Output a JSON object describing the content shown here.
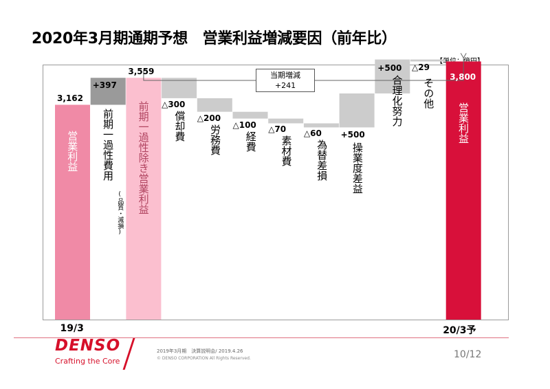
{
  "title": "2020年3月期通期予想　営業利益増減要因（前年比）",
  "unit": "【単位：億円】",
  "callout": {
    "label": "当期増減",
    "value": "+241"
  },
  "chart_data": {
    "type": "waterfall",
    "title": "2020年3月期通期予想　営業利益増減要因（前年比）",
    "ylim": [
      0,
      4300
    ],
    "steps": [
      {
        "name": "営業利益",
        "value_label": "3,162",
        "start": 0,
        "end": 3162,
        "kind": "start"
      },
      {
        "name": "前期一過性費用",
        "note": "(品質・減損)",
        "value_label": "+397",
        "start": 3162,
        "end": 3559,
        "kind": "increase"
      },
      {
        "name": "前期一過性除き営業利益",
        "value_label": "3,559",
        "start": 0,
        "end": 3559,
        "kind": "subtotal"
      },
      {
        "name": "償却費",
        "value_label": "△300",
        "start": 3559,
        "end": 3259,
        "kind": "decrease"
      },
      {
        "name": "労務費",
        "value_label": "△200",
        "start": 3259,
        "end": 3059,
        "kind": "decrease"
      },
      {
        "name": "経費",
        "value_label": "△100",
        "start": 3059,
        "end": 2959,
        "kind": "decrease"
      },
      {
        "name": "素材費",
        "value_label": "△70",
        "start": 2959,
        "end": 2889,
        "kind": "decrease"
      },
      {
        "name": "為替差損",
        "value_label": "△60",
        "start": 2889,
        "end": 2829,
        "kind": "decrease"
      },
      {
        "name": "操業度差益",
        "value_label": "+500",
        "start": 2829,
        "end": 3329,
        "kind": "increase"
      },
      {
        "name": "合理化努力",
        "value_label": "+500",
        "start": 3329,
        "end": 3829,
        "kind": "increase"
      },
      {
        "name": "その他",
        "value_label": "△29",
        "start": 3829,
        "end": 3800,
        "kind": "decrease"
      },
      {
        "name": "営業利益",
        "value_label": "3,800",
        "start": 0,
        "end": 3800,
        "kind": "end"
      }
    ],
    "x_categories": [
      "19/3",
      "20/3予"
    ]
  },
  "colors": {
    "start": "#f08aa6",
    "subtotal": "#fbbfcf",
    "end": "#d8103a",
    "gain_dark": "#9a9a9a",
    "step": "#cccccc",
    "accent": "#d6102a"
  },
  "footer": {
    "brand": "DENSO",
    "tagline": "Crafting the Core",
    "line1": "2019年3月期　決算説明会/ 2019.4.26",
    "line2": "© DENSO CORPORATION All Rights Reserved.",
    "page": "10/12"
  }
}
